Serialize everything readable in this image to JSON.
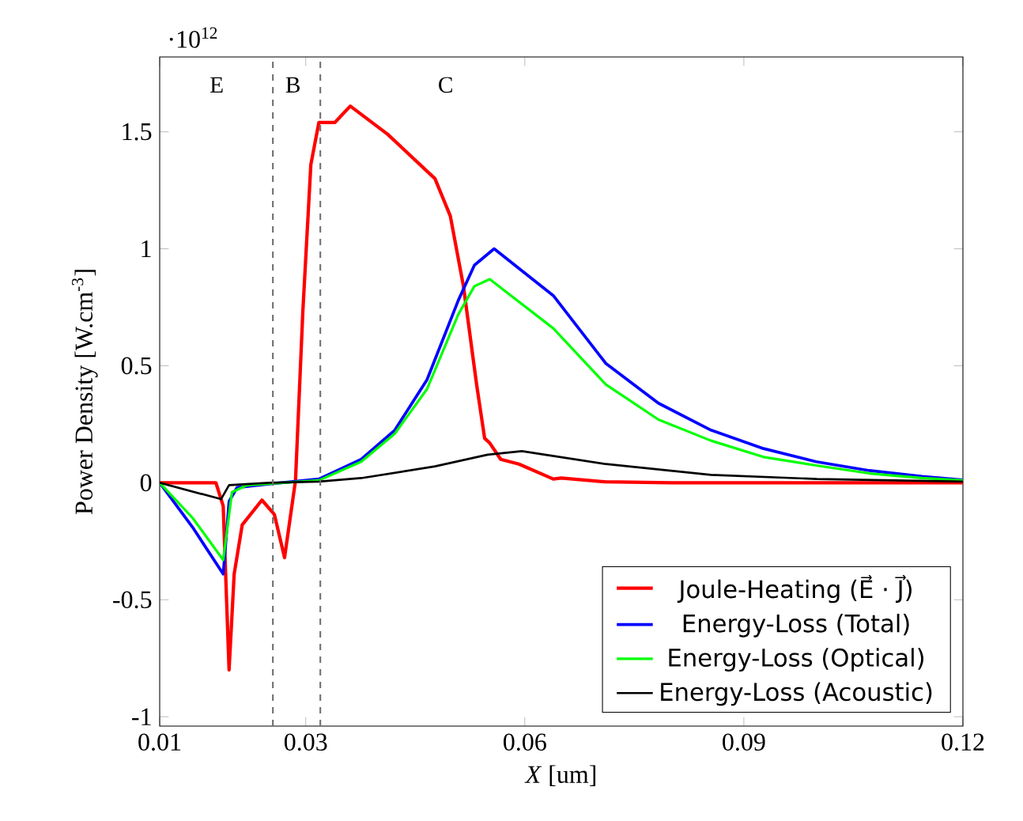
{
  "chart_data": {
    "type": "line",
    "xlabel": "*X* [um]",
    "ylabel": "Power Density [W.cm$^{-3}$]",
    "xlim": [
      0.01,
      0.12
    ],
    "ylim": [
      -1.04,
      1.82
    ],
    "xticks": [
      0.01,
      0.03,
      0.06,
      0.09,
      0.12
    ],
    "yticks": [
      -1,
      -0.5,
      0,
      0.5,
      1,
      1.5
    ],
    "grid": false,
    "legend": "bottom right",
    "marker": "none",
    "line_style": "solid",
    "series": [
      {
        "name": "Joule-Heating (E⃗ · J⃗)",
        "color": "#ff0000",
        "x": [
          0.01,
          0.0177,
          0.0187,
          0.0195,
          0.0202,
          0.0213,
          0.024,
          0.0257,
          0.0271,
          0.0286,
          0.0296,
          0.0307,
          0.0318,
          0.034,
          0.0361,
          0.0412,
          0.0477,
          0.0498,
          0.0516,
          0.0534,
          0.0545,
          0.0552,
          0.0567,
          0.0592,
          0.0639,
          0.065,
          0.071,
          0.08,
          0.12
        ],
        "values": [
          0,
          0,
          -0.1,
          -0.8,
          -0.39,
          -0.18,
          -0.074,
          -0.135,
          -0.32,
          0.01,
          0.73,
          1.36,
          1.54,
          1.54,
          1.61,
          1.49,
          1.3,
          1.14,
          0.84,
          0.42,
          0.19,
          0.17,
          0.1,
          0.08,
          0.016,
          0.02,
          0.004,
          0,
          0
        ]
      },
      {
        "name": "Energy-Loss (Total)",
        "color": "#0000ff",
        "x": [
          0.01,
          0.0145,
          0.0187,
          0.0195,
          0.0206,
          0.025,
          0.0318,
          0.0376,
          0.0422,
          0.0466,
          0.0509,
          0.0531,
          0.0558,
          0.0639,
          0.0711,
          0.0783,
          0.0855,
          0.0927,
          0.0999,
          0.1072,
          0.1144,
          0.12
        ],
        "values": [
          0,
          -0.19,
          -0.39,
          -0.08,
          -0.02,
          -0.005,
          0.016,
          0.1,
          0.225,
          0.44,
          0.78,
          0.93,
          1.0,
          0.8,
          0.51,
          0.34,
          0.225,
          0.146,
          0.09,
          0.052,
          0.027,
          0.012
        ]
      },
      {
        "name": "Energy-Loss (Optical)",
        "color": "#00ff00",
        "x": [
          0.01,
          0.0145,
          0.0187,
          0.0199,
          0.022,
          0.0318,
          0.0376,
          0.0422,
          0.0466,
          0.0509,
          0.0531,
          0.0552,
          0.0639,
          0.0711,
          0.0783,
          0.0855,
          0.0927,
          0.0999,
          0.1072,
          0.1144,
          0.12
        ],
        "values": [
          0,
          -0.15,
          -0.33,
          -0.04,
          -0.01,
          0.01,
          0.09,
          0.21,
          0.4,
          0.72,
          0.84,
          0.87,
          0.66,
          0.42,
          0.27,
          0.18,
          0.11,
          0.074,
          0.04,
          0.02,
          0.01
        ]
      },
      {
        "name": "Energy-Loss (Acoustic)",
        "color": "#000000",
        "x": [
          0.01,
          0.0184,
          0.0195,
          0.025,
          0.0318,
          0.0376,
          0.0477,
          0.0549,
          0.0596,
          0.0711,
          0.0855,
          0.1,
          0.12
        ],
        "values": [
          0,
          -0.07,
          -0.01,
          0,
          0.005,
          0.02,
          0.07,
          0.12,
          0.135,
          0.08,
          0.034,
          0.016,
          0.005
        ]
      }
    ],
    "ref_lines": [
      {
        "axis": "x",
        "value": 0.0255,
        "color": "#707070",
        "line_style": "dashed"
      },
      {
        "axis": "x",
        "value": 0.032,
        "color": "#707070",
        "line_style": "dashed"
      }
    ],
    "annotations": [
      "·10$^{12}$",
      "E",
      "B",
      "C"
    ]
  }
}
